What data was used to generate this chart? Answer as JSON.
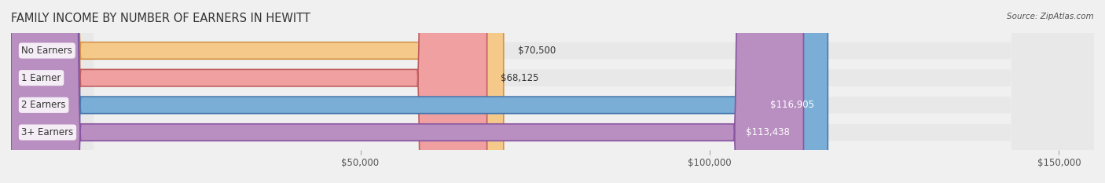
{
  "title": "FAMILY INCOME BY NUMBER OF EARNERS IN HEWITT",
  "source": "Source: ZipAtlas.com",
  "categories": [
    "No Earners",
    "1 Earner",
    "2 Earners",
    "3+ Earners"
  ],
  "values": [
    70500,
    68125,
    116905,
    113438
  ],
  "value_labels": [
    "$70,500",
    "$68,125",
    "$116,905",
    "$113,438"
  ],
  "bar_colors": [
    "#f5c98a",
    "#f0a0a0",
    "#7aaed6",
    "#b88fc0"
  ],
  "bar_edge_colors": [
    "#d4954a",
    "#c06060",
    "#4a7ab0",
    "#8855a0"
  ],
  "bg_color": "#f0f0f0",
  "bar_bg_color": "#e8e8e8",
  "xmin": 0,
  "xmax": 155000,
  "xticks": [
    50000,
    100000,
    150000
  ],
  "xtick_labels": [
    "$50,000",
    "$100,000",
    "$150,000"
  ],
  "bar_height": 0.62,
  "label_fontsize": 8.5,
  "title_fontsize": 10.5,
  "tick_fontsize": 8.5,
  "value_label_color_dark": "#333333",
  "value_label_color_light": "#ffffff"
}
